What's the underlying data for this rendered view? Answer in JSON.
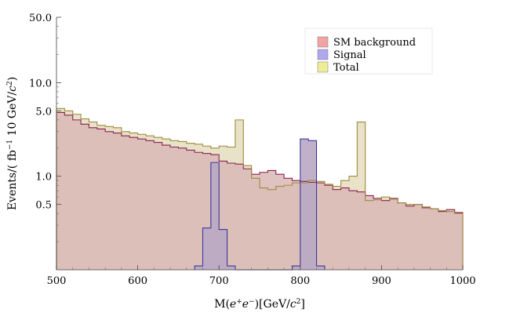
{
  "chart_data": {
    "type": "histogram",
    "xlabel_prefix": "M(",
    "xlabel_suffix": ")[GeV/",
    "xlabel_end": "]",
    "ylabel_prefix": "Events/( fb",
    "ylabel_mid": " 10 GeV/",
    "ylabel_end": ")",
    "x_ticks": [
      "500",
      "600",
      "700",
      "800",
      "900",
      "1000"
    ],
    "y_ticks": [
      "0.5",
      "1.0",
      "5.0",
      "10.0",
      "50.0"
    ],
    "y_tick_values": [
      0.5,
      1.0,
      5.0,
      10.0,
      50.0
    ],
    "xlim": [
      500,
      1000
    ],
    "ylim": [
      0.1,
      50
    ],
    "y_scale": "log",
    "bin_width": 10,
    "legend": [
      "SM background",
      "Signal",
      "Total"
    ],
    "colors": {
      "background_fill": "#d9b8b5",
      "background_line": "#8b2252",
      "signal_fill": "#b9a7c4",
      "signal_line": "#3a3a9c",
      "total_fill": "#e8e3c8",
      "total_line": "#a08a3e",
      "legend_bg": "#f2a4a4",
      "legend_sig": "#b0a8ee",
      "legend_tot": "#eeee99"
    },
    "series": [
      {
        "name": "SM background",
        "bin_start": 500,
        "values": [
          4.8,
          4.5,
          4.0,
          3.6,
          3.3,
          3.2,
          3.0,
          2.9,
          2.7,
          2.6,
          2.5,
          2.4,
          2.3,
          2.15,
          2.05,
          2.0,
          1.9,
          1.8,
          1.75,
          1.7,
          1.45,
          1.38,
          1.35,
          1.2,
          1.05,
          1.1,
          1.15,
          1.05,
          0.95,
          0.9,
          0.88,
          0.86,
          0.85,
          0.8,
          0.72,
          0.75,
          0.7,
          0.68,
          0.62,
          0.58,
          0.55,
          0.58,
          0.52,
          0.48,
          0.5,
          0.46,
          0.45,
          0.42,
          0.44,
          0.41
        ]
      },
      {
        "name": "Signal",
        "bin_start": 670,
        "values": [
          0.11,
          0.28,
          1.4,
          0.27,
          0.11,
          0.0,
          0.0,
          0.0,
          0.0,
          0.0,
          0.0,
          0.0,
          0.11,
          2.5,
          2.4,
          0.11
        ]
      },
      {
        "name": "Total",
        "bin_start": 500,
        "values": [
          5.3,
          5.0,
          4.6,
          4.1,
          3.8,
          3.5,
          3.4,
          3.3,
          3.0,
          2.9,
          2.8,
          2.7,
          2.6,
          2.5,
          2.4,
          2.35,
          2.25,
          2.2,
          2.1,
          2.0,
          2.1,
          2.05,
          4.0,
          1.3,
          0.95,
          0.75,
          0.72,
          0.78,
          0.8,
          0.85,
          0.85,
          0.9,
          0.88,
          0.82,
          0.78,
          0.9,
          1.0,
          3.8,
          0.55,
          0.56,
          0.6,
          0.57,
          0.52,
          0.5,
          0.5,
          0.47,
          0.45,
          0.43,
          0.42,
          0.4
        ]
      }
    ]
  }
}
